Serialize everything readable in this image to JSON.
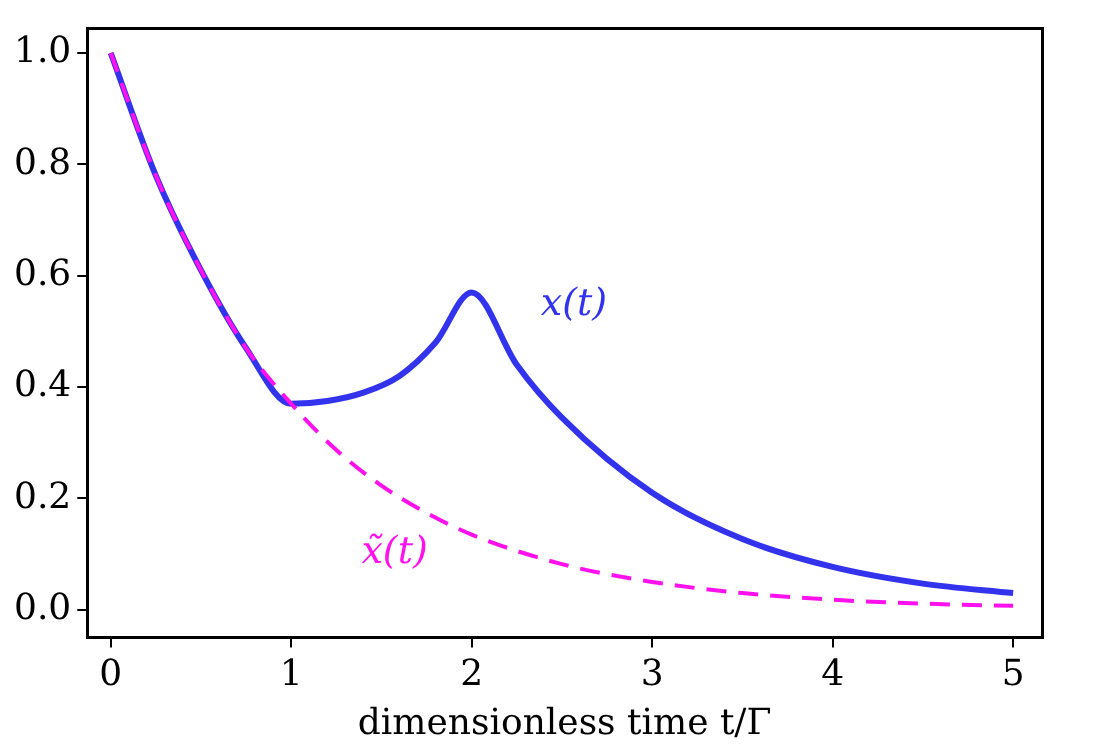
{
  "chart_data": {
    "type": "line",
    "xlabel": "dimensionless time t/Γ",
    "xlim": [
      -0.13,
      5.16
    ],
    "ylim": [
      -0.05,
      1.045
    ],
    "xticks": [
      0,
      1,
      2,
      3,
      4,
      5
    ],
    "yticks": [
      {
        "value": 0,
        "label": "0.0"
      },
      {
        "value": 0.2,
        "label": "0.2"
      },
      {
        "value": 0.4,
        "label": "0.4"
      },
      {
        "value": 0.6,
        "label": "0.6"
      },
      {
        "value": 0.8,
        "label": "0.8"
      },
      {
        "value": 1,
        "label": "1.0"
      }
    ],
    "grid": false,
    "legend": false,
    "marker": "none",
    "series": [
      {
        "name": "x(t)",
        "color": "#3333ee",
        "line_style": "solid",
        "x": [
          0,
          0.25,
          0.5,
          0.75,
          1,
          1.2,
          1.4,
          1.6,
          1.8,
          2,
          2.25,
          2.5,
          3,
          3.5,
          4,
          4.5,
          5
        ],
        "values": [
          1,
          0.78,
          0.61,
          0.47,
          0.37,
          0.375,
          0.39,
          0.42,
          0.48,
          0.57,
          0.44,
          0.345,
          0.21,
          0.127,
          0.077,
          0.047,
          0.03
        ]
      },
      {
        "name": "x̃(t)",
        "color": "#ff11ee",
        "line_style": "dashed",
        "x": [
          0,
          0.25,
          0.5,
          0.75,
          1,
          1.25,
          1.5,
          1.75,
          2,
          2.5,
          3,
          3.5,
          4,
          4.5,
          5
        ],
        "values": [
          1,
          0.78,
          0.61,
          0.47,
          0.37,
          0.287,
          0.223,
          0.174,
          0.135,
          0.082,
          0.05,
          0.03,
          0.018,
          0.011,
          0.007
        ]
      }
    ]
  }
}
